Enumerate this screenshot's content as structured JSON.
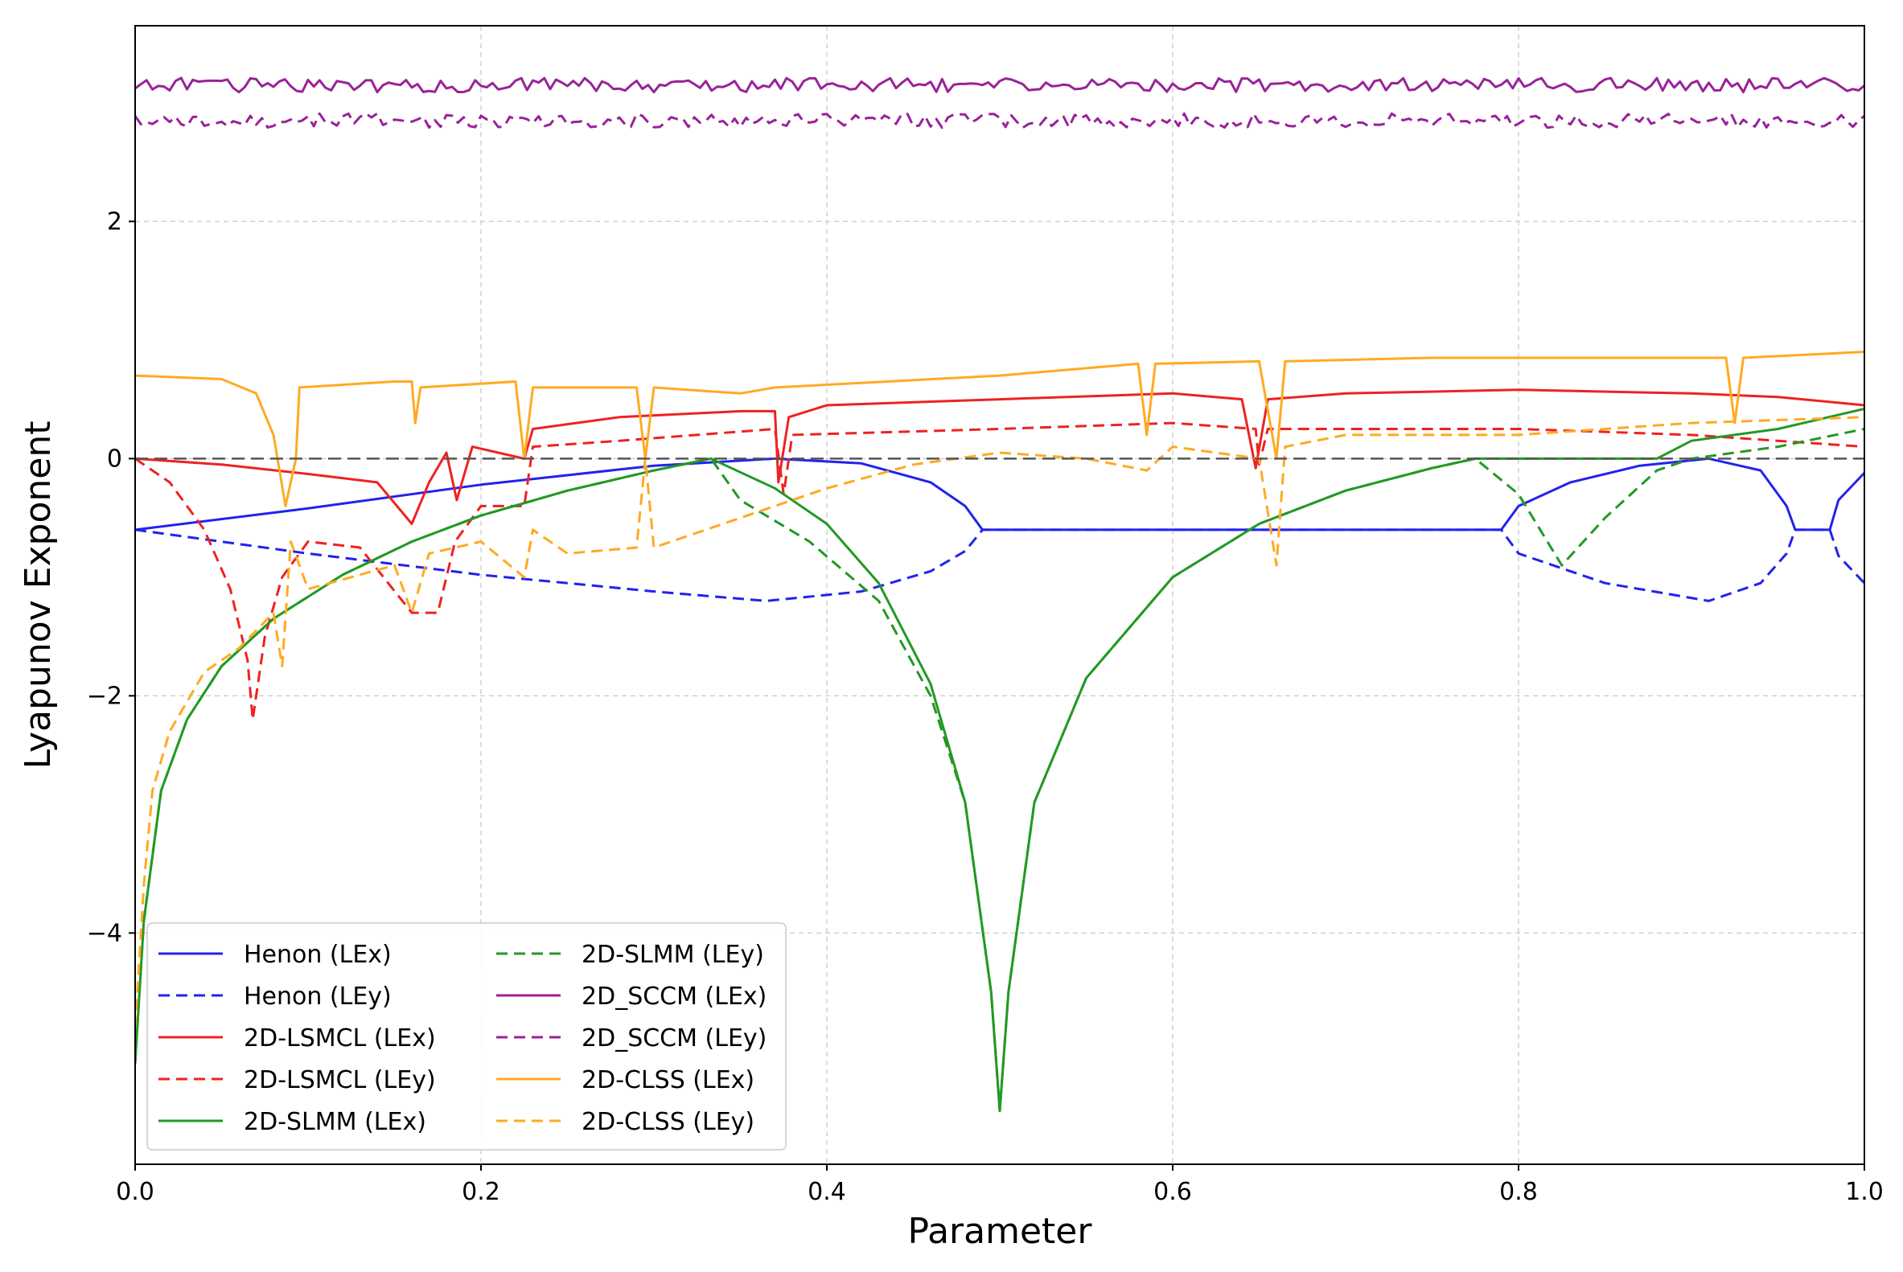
{
  "chart_data": {
    "type": "line",
    "title": "",
    "xlabel": "Parameter",
    "ylabel": "Lyapunov Exponent",
    "xlim": [
      0.0,
      1.0
    ],
    "ylim": [
      -5.95,
      3.65
    ],
    "xticks": [
      0.0,
      0.2,
      0.4,
      0.6,
      0.8,
      1.0
    ],
    "xtick_labels": [
      "0.0",
      "0.2",
      "0.4",
      "0.6",
      "0.8",
      "1.0"
    ],
    "yticks": [
      -4,
      -2,
      0,
      2
    ],
    "ytick_labels": [
      "−4",
      "−2",
      "0",
      "2"
    ],
    "grid": true,
    "zero_reference_line": 0,
    "legend_position": "lower-left",
    "series": [
      {
        "name": "Henon (LEx)",
        "color": "#2222ee",
        "dash": "solid",
        "points": [
          [
            0.0,
            -0.6
          ],
          [
            0.1,
            -0.42
          ],
          [
            0.2,
            -0.22
          ],
          [
            0.3,
            -0.06
          ],
          [
            0.37,
            0.0
          ],
          [
            0.42,
            -0.04
          ],
          [
            0.46,
            -0.2
          ],
          [
            0.48,
            -0.4
          ],
          [
            0.49,
            -0.6
          ],
          [
            0.6,
            -0.6
          ],
          [
            0.7,
            -0.6
          ],
          [
            0.79,
            -0.6
          ],
          [
            0.8,
            -0.4
          ],
          [
            0.83,
            -0.2
          ],
          [
            0.87,
            -0.06
          ],
          [
            0.91,
            0.0
          ],
          [
            0.94,
            -0.1
          ],
          [
            0.955,
            -0.4
          ],
          [
            0.96,
            -0.6
          ],
          [
            0.98,
            -0.6
          ],
          [
            0.985,
            -0.35
          ],
          [
            1.0,
            -0.12
          ]
        ]
      },
      {
        "name": "Henon (LEy)",
        "color": "#2222ee",
        "dash": "dashed",
        "points": [
          [
            0.0,
            -0.6
          ],
          [
            0.1,
            -0.8
          ],
          [
            0.2,
            -0.98
          ],
          [
            0.3,
            -1.12
          ],
          [
            0.365,
            -1.2
          ],
          [
            0.42,
            -1.12
          ],
          [
            0.46,
            -0.95
          ],
          [
            0.48,
            -0.78
          ],
          [
            0.49,
            -0.6
          ],
          [
            0.79,
            -0.6
          ],
          [
            0.8,
            -0.8
          ],
          [
            0.85,
            -1.05
          ],
          [
            0.91,
            -1.2
          ],
          [
            0.94,
            -1.05
          ],
          [
            0.955,
            -0.8
          ],
          [
            0.96,
            -0.6
          ],
          [
            0.98,
            -0.6
          ],
          [
            0.985,
            -0.82
          ],
          [
            1.0,
            -1.05
          ]
        ]
      },
      {
        "name": "2D-LSMCL (LEx)",
        "color": "#ee2222",
        "dash": "solid",
        "points": [
          [
            0.0,
            0.0
          ],
          [
            0.05,
            -0.05
          ],
          [
            0.1,
            -0.13
          ],
          [
            0.14,
            -0.2
          ],
          [
            0.16,
            -0.55
          ],
          [
            0.17,
            -0.2
          ],
          [
            0.18,
            0.05
          ],
          [
            0.186,
            -0.35
          ],
          [
            0.195,
            0.1
          ],
          [
            0.225,
            0.0
          ],
          [
            0.23,
            0.25
          ],
          [
            0.28,
            0.35
          ],
          [
            0.35,
            0.4
          ],
          [
            0.37,
            0.4
          ],
          [
            0.372,
            -0.2
          ],
          [
            0.378,
            0.35
          ],
          [
            0.4,
            0.45
          ],
          [
            0.5,
            0.5
          ],
          [
            0.6,
            0.55
          ],
          [
            0.64,
            0.5
          ],
          [
            0.648,
            -0.08
          ],
          [
            0.655,
            0.5
          ],
          [
            0.7,
            0.55
          ],
          [
            0.8,
            0.58
          ],
          [
            0.9,
            0.55
          ],
          [
            0.95,
            0.52
          ],
          [
            1.0,
            0.45
          ]
        ]
      },
      {
        "name": "2D-LSMCL (LEy)",
        "color": "#ee2222",
        "dash": "dashed",
        "points": [
          [
            0.0,
            0.0
          ],
          [
            0.02,
            -0.2
          ],
          [
            0.04,
            -0.6
          ],
          [
            0.055,
            -1.1
          ],
          [
            0.065,
            -1.7
          ],
          [
            0.068,
            -2.2
          ],
          [
            0.075,
            -1.5
          ],
          [
            0.085,
            -1.0
          ],
          [
            0.1,
            -0.7
          ],
          [
            0.13,
            -0.75
          ],
          [
            0.16,
            -1.3
          ],
          [
            0.175,
            -1.3
          ],
          [
            0.185,
            -0.7
          ],
          [
            0.2,
            -0.4
          ],
          [
            0.225,
            -0.4
          ],
          [
            0.23,
            0.1
          ],
          [
            0.28,
            0.15
          ],
          [
            0.37,
            0.25
          ],
          [
            0.375,
            -0.3
          ],
          [
            0.38,
            0.2
          ],
          [
            0.5,
            0.25
          ],
          [
            0.6,
            0.3
          ],
          [
            0.648,
            0.25
          ],
          [
            0.65,
            -0.05
          ],
          [
            0.655,
            0.25
          ],
          [
            0.8,
            0.25
          ],
          [
            0.9,
            0.2
          ],
          [
            0.95,
            0.15
          ],
          [
            1.0,
            0.1
          ]
        ]
      },
      {
        "name": "2D-SLMM (LEx)",
        "color": "#229922",
        "dash": "solid",
        "points": [
          [
            0.0,
            -5.1
          ],
          [
            0.005,
            -3.9
          ],
          [
            0.015,
            -2.8
          ],
          [
            0.03,
            -2.2
          ],
          [
            0.05,
            -1.75
          ],
          [
            0.08,
            -1.35
          ],
          [
            0.12,
            -0.98
          ],
          [
            0.16,
            -0.7
          ],
          [
            0.2,
            -0.48
          ],
          [
            0.25,
            -0.27
          ],
          [
            0.3,
            -0.1
          ],
          [
            0.333,
            0.0
          ],
          [
            0.37,
            -0.25
          ],
          [
            0.4,
            -0.55
          ],
          [
            0.43,
            -1.05
          ],
          [
            0.46,
            -1.9
          ],
          [
            0.48,
            -2.9
          ],
          [
            0.495,
            -4.5
          ],
          [
            0.5,
            -5.5
          ],
          [
            0.505,
            -4.5
          ],
          [
            0.52,
            -2.9
          ],
          [
            0.55,
            -1.85
          ],
          [
            0.6,
            -1.0
          ],
          [
            0.65,
            -0.55
          ],
          [
            0.7,
            -0.27
          ],
          [
            0.75,
            -0.08
          ],
          [
            0.775,
            0.0
          ],
          [
            0.88,
            0.0
          ],
          [
            0.9,
            0.15
          ],
          [
            0.95,
            0.25
          ],
          [
            1.0,
            0.42
          ]
        ]
      },
      {
        "name": "2D-SLMM (LEy)",
        "color": "#229922",
        "dash": "dashed",
        "points": [
          [
            0.0,
            -5.1
          ],
          [
            0.005,
            -3.9
          ],
          [
            0.015,
            -2.8
          ],
          [
            0.03,
            -2.2
          ],
          [
            0.05,
            -1.75
          ],
          [
            0.08,
            -1.35
          ],
          [
            0.12,
            -0.98
          ],
          [
            0.16,
            -0.7
          ],
          [
            0.2,
            -0.48
          ],
          [
            0.25,
            -0.27
          ],
          [
            0.3,
            -0.1
          ],
          [
            0.333,
            0.0
          ],
          [
            0.35,
            -0.35
          ],
          [
            0.39,
            -0.7
          ],
          [
            0.43,
            -1.2
          ],
          [
            0.46,
            -2.0
          ],
          [
            0.48,
            -2.9
          ],
          [
            0.495,
            -4.5
          ],
          [
            0.5,
            -5.5
          ],
          [
            0.505,
            -4.5
          ],
          [
            0.52,
            -2.9
          ],
          [
            0.55,
            -1.85
          ],
          [
            0.6,
            -1.0
          ],
          [
            0.65,
            -0.55
          ],
          [
            0.7,
            -0.27
          ],
          [
            0.75,
            -0.08
          ],
          [
            0.775,
            0.0
          ],
          [
            0.8,
            -0.3
          ],
          [
            0.825,
            -0.9
          ],
          [
            0.85,
            -0.5
          ],
          [
            0.88,
            -0.1
          ],
          [
            0.9,
            0.0
          ],
          [
            0.95,
            0.1
          ],
          [
            1.0,
            0.25
          ]
        ]
      },
      {
        "name": "2D_SCCM (LEx)",
        "color": "#992299",
        "dash": "solid",
        "points": [
          [
            0.0,
            3.15
          ],
          [
            0.25,
            3.15
          ],
          [
            0.5,
            3.15
          ],
          [
            0.75,
            3.15
          ],
          [
            1.0,
            3.15
          ]
        ]
      },
      {
        "name": "2D_SCCM (LEy)",
        "color": "#992299",
        "dash": "dashed",
        "points": [
          [
            0.0,
            2.85
          ],
          [
            0.25,
            2.85
          ],
          [
            0.5,
            2.85
          ],
          [
            0.75,
            2.85
          ],
          [
            1.0,
            2.85
          ]
        ]
      },
      {
        "name": "2D-CLSS (LEx)",
        "color": "#ffaa22",
        "dash": "solid",
        "points": [
          [
            0.0,
            0.7
          ],
          [
            0.05,
            0.67
          ],
          [
            0.07,
            0.55
          ],
          [
            0.08,
            0.2
          ],
          [
            0.087,
            -0.4
          ],
          [
            0.093,
            0.0
          ],
          [
            0.095,
            0.6
          ],
          [
            0.15,
            0.65
          ],
          [
            0.16,
            0.65
          ],
          [
            0.162,
            0.3
          ],
          [
            0.165,
            0.6
          ],
          [
            0.22,
            0.65
          ],
          [
            0.225,
            0.0
          ],
          [
            0.23,
            0.6
          ],
          [
            0.29,
            0.6
          ],
          [
            0.295,
            0.0
          ],
          [
            0.3,
            0.6
          ],
          [
            0.35,
            0.55
          ],
          [
            0.37,
            0.6
          ],
          [
            0.5,
            0.7
          ],
          [
            0.58,
            0.8
          ],
          [
            0.585,
            0.2
          ],
          [
            0.59,
            0.8
          ],
          [
            0.65,
            0.82
          ],
          [
            0.66,
            0.0
          ],
          [
            0.665,
            0.82
          ],
          [
            0.75,
            0.85
          ],
          [
            0.85,
            0.85
          ],
          [
            0.92,
            0.85
          ],
          [
            0.925,
            0.3
          ],
          [
            0.93,
            0.85
          ],
          [
            1.0,
            0.9
          ]
        ]
      },
      {
        "name": "2D-CLSS (LEy)",
        "color": "#ffaa22",
        "dash": "dashed",
        "points": [
          [
            0.0,
            -4.8
          ],
          [
            0.005,
            -3.6
          ],
          [
            0.01,
            -2.8
          ],
          [
            0.02,
            -2.3
          ],
          [
            0.04,
            -1.8
          ],
          [
            0.06,
            -1.6
          ],
          [
            0.08,
            -1.3
          ],
          [
            0.085,
            -1.75
          ],
          [
            0.09,
            -0.7
          ],
          [
            0.1,
            -1.1
          ],
          [
            0.15,
            -0.9
          ],
          [
            0.16,
            -1.3
          ],
          [
            0.17,
            -0.8
          ],
          [
            0.2,
            -0.7
          ],
          [
            0.225,
            -1.0
          ],
          [
            0.23,
            -0.6
          ],
          [
            0.25,
            -0.8
          ],
          [
            0.29,
            -0.75
          ],
          [
            0.295,
            0.0
          ],
          [
            0.3,
            -0.75
          ],
          [
            0.35,
            -0.5
          ],
          [
            0.4,
            -0.25
          ],
          [
            0.45,
            -0.05
          ],
          [
            0.5,
            0.05
          ],
          [
            0.55,
            0.0
          ],
          [
            0.585,
            -0.1
          ],
          [
            0.6,
            0.1
          ],
          [
            0.65,
            0.0
          ],
          [
            0.66,
            -0.9
          ],
          [
            0.665,
            0.1
          ],
          [
            0.7,
            0.2
          ],
          [
            0.8,
            0.2
          ],
          [
            0.9,
            0.3
          ],
          [
            1.0,
            0.35
          ]
        ]
      }
    ],
    "legend_entries": [
      "Henon (LEx)",
      "Henon (LEy)",
      "2D-LSMCL (LEx)",
      "2D-LSMCL (LEy)",
      "2D-SLMM (LEx)",
      "2D-SLMM (LEy)",
      "2D_SCCM (LEx)",
      "2D_SCCM (LEy)",
      "2D-CLSS (LEx)",
      "2D-CLSS (LEy)"
    ]
  }
}
